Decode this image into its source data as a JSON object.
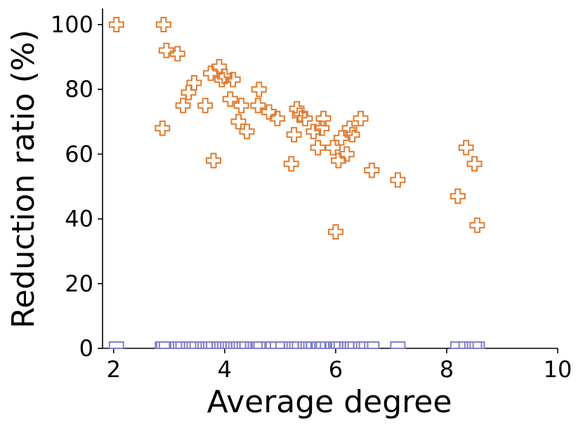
{
  "chart_data": {
    "type": "scatter",
    "xlabel": "Average degree",
    "ylabel": "Reduction ratio (%)",
    "xlim": [
      1.8,
      10
    ],
    "ylim": [
      0,
      105
    ],
    "x_ticks": [
      2,
      4,
      6,
      8,
      10
    ],
    "y_ticks": [
      0,
      20,
      40,
      60,
      80,
      100
    ],
    "grid": false,
    "series": [
      {
        "marker": "plus-outline",
        "color": "#e07b2f",
        "points": [
          [
            2.05,
            100
          ],
          [
            2.9,
            100
          ],
          [
            2.95,
            92
          ],
          [
            3.15,
            91
          ],
          [
            2.88,
            68
          ],
          [
            3.25,
            75
          ],
          [
            3.35,
            79
          ],
          [
            3.45,
            82
          ],
          [
            3.65,
            75
          ],
          [
            3.75,
            85
          ],
          [
            3.8,
            58
          ],
          [
            3.9,
            87
          ],
          [
            3.95,
            83
          ],
          [
            4.0,
            84
          ],
          [
            4.1,
            77
          ],
          [
            4.15,
            83
          ],
          [
            4.25,
            70
          ],
          [
            4.3,
            75
          ],
          [
            4.4,
            67
          ],
          [
            4.6,
            75
          ],
          [
            4.62,
            80
          ],
          [
            4.8,
            73
          ],
          [
            4.95,
            71
          ],
          [
            5.2,
            57
          ],
          [
            5.25,
            66
          ],
          [
            5.3,
            74
          ],
          [
            5.35,
            72
          ],
          [
            5.45,
            71
          ],
          [
            5.6,
            67
          ],
          [
            5.68,
            62
          ],
          [
            5.75,
            68
          ],
          [
            5.78,
            71
          ],
          [
            5.95,
            62
          ],
          [
            6.0,
            36
          ],
          [
            6.05,
            58
          ],
          [
            6.1,
            65
          ],
          [
            6.2,
            60
          ],
          [
            6.25,
            68
          ],
          [
            6.3,
            66
          ],
          [
            6.45,
            71
          ],
          [
            6.65,
            55
          ],
          [
            7.12,
            52
          ],
          [
            8.2,
            47
          ],
          [
            8.35,
            62
          ],
          [
            8.5,
            57
          ],
          [
            8.55,
            38
          ]
        ]
      },
      {
        "marker": "square-outline",
        "color": "#8080c8",
        "points": [
          [
            2.05,
            0
          ],
          [
            2.9,
            0
          ],
          [
            2.95,
            0
          ],
          [
            3.15,
            0
          ],
          [
            2.88,
            0
          ],
          [
            3.25,
            0
          ],
          [
            3.35,
            0
          ],
          [
            3.45,
            0
          ],
          [
            3.65,
            0
          ],
          [
            3.75,
            0
          ],
          [
            3.8,
            0
          ],
          [
            3.9,
            0
          ],
          [
            3.95,
            0
          ],
          [
            4.0,
            0
          ],
          [
            4.1,
            0
          ],
          [
            4.15,
            0
          ],
          [
            4.25,
            0
          ],
          [
            4.3,
            0
          ],
          [
            4.4,
            0
          ],
          [
            4.6,
            0
          ],
          [
            4.62,
            0
          ],
          [
            4.8,
            0
          ],
          [
            4.95,
            0
          ],
          [
            5.2,
            0
          ],
          [
            5.25,
            0
          ],
          [
            5.3,
            0
          ],
          [
            5.35,
            0
          ],
          [
            5.45,
            0
          ],
          [
            5.6,
            0
          ],
          [
            5.68,
            0
          ],
          [
            5.75,
            0
          ],
          [
            5.78,
            0
          ],
          [
            5.95,
            0
          ],
          [
            6.0,
            0
          ],
          [
            6.05,
            0
          ],
          [
            6.1,
            0
          ],
          [
            6.2,
            0
          ],
          [
            6.25,
            0
          ],
          [
            6.3,
            0
          ],
          [
            6.45,
            0
          ],
          [
            6.65,
            0
          ],
          [
            7.12,
            0
          ],
          [
            8.2,
            0
          ],
          [
            8.35,
            0
          ],
          [
            8.5,
            0
          ],
          [
            8.55,
            0
          ]
        ]
      }
    ]
  }
}
